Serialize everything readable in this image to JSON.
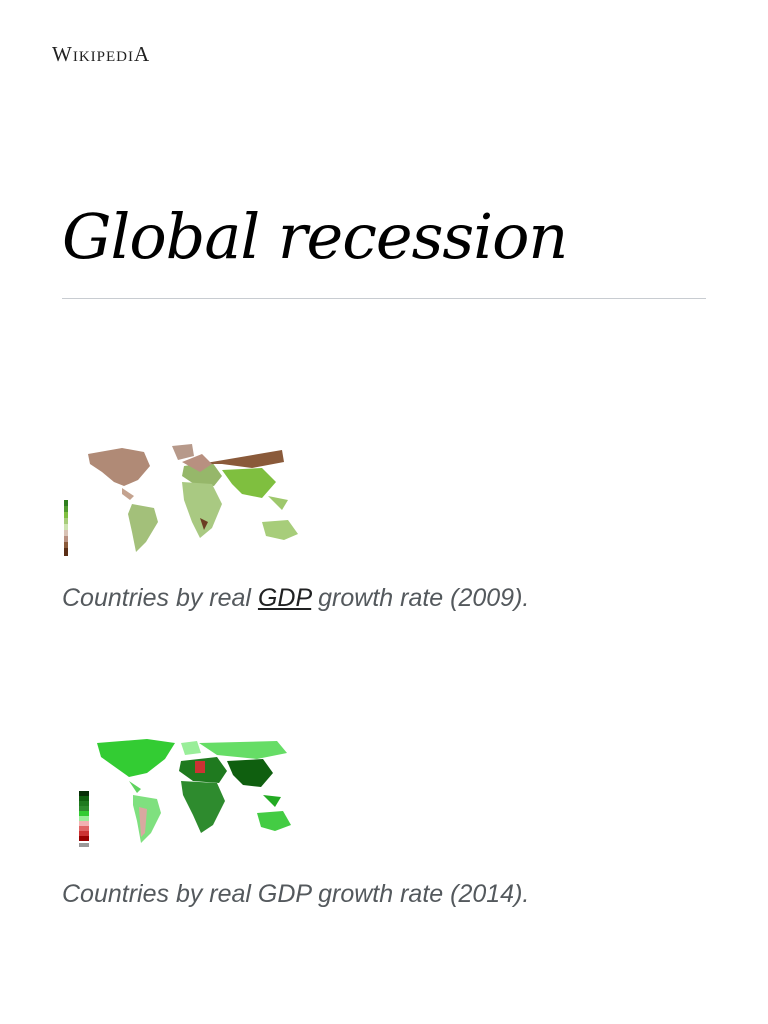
{
  "header": {
    "logo": "WikipediA"
  },
  "article": {
    "title": "Global recession"
  },
  "figures": [
    {
      "caption_parts": [
        "Countries by real ",
        "GDP",
        " growth rate (2009)."
      ]
    },
    {
      "caption_parts": [
        "Countries by real GDP growth rate (2014)."
      ]
    }
  ]
}
